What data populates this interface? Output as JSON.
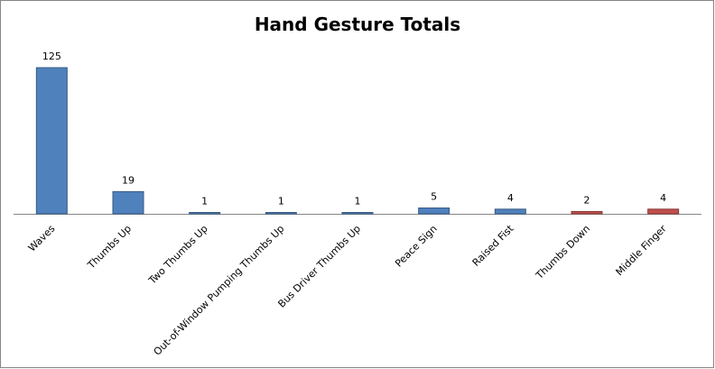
{
  "chart_data": {
    "type": "bar",
    "title": "Hand Gesture Totals",
    "categories": [
      "Waves",
      "Thumbs Up",
      "Two Thumbs Up",
      "Out-of-Window Pumping Thumbs Up",
      "Bus Driver Thumbs Up",
      "Peace Sign",
      "Raised Fist",
      "Thumbs Down",
      "Middle Finger"
    ],
    "values": [
      125,
      19,
      1,
      1,
      1,
      5,
      4,
      2,
      4
    ],
    "colors": [
      "#4f81bd",
      "#4f81bd",
      "#4f81bd",
      "#4f81bd",
      "#4f81bd",
      "#4f81bd",
      "#4f81bd",
      "#c0504d",
      "#c0504d"
    ],
    "data_labels": true
  }
}
